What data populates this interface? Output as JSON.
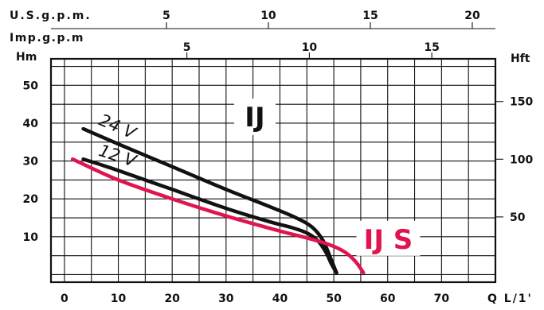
{
  "chart_data": {
    "type": "line",
    "x_axis": {
      "label": "Q L/1'",
      "ticks": [
        0,
        10,
        20,
        30,
        40,
        50,
        60,
        70
      ],
      "range": [
        -2.5,
        80
      ]
    },
    "y_axis": {
      "label": "Hm",
      "ticks": [
        10,
        20,
        30,
        40,
        50
      ],
      "range": [
        -2,
        57
      ]
    },
    "y2_axis": {
      "label": "Hft",
      "ticks": [
        50,
        100,
        150
      ]
    },
    "top_axis_usgpm": {
      "label": "U.S.g.p.m.",
      "ticks": [
        5,
        10,
        15,
        20
      ]
    },
    "top_axis_impgpm": {
      "label": "Imp.g.p.m",
      "ticks": [
        5,
        10,
        15
      ]
    },
    "grid": true,
    "series": [
      {
        "name": "24 V",
        "color": "#111111",
        "x": [
          3.5,
          10,
          20,
          30,
          38,
          43,
          46,
          48,
          49.5,
          50.5
        ],
        "y": [
          38.5,
          34.5,
          28.5,
          22.5,
          18,
          15,
          12.5,
          9,
          4,
          0.5
        ]
      },
      {
        "name": "12 V",
        "color": "#111111",
        "x": [
          3.5,
          10,
          20,
          30,
          38,
          42,
          45,
          47,
          48.5,
          49.5,
          50.5
        ],
        "y": [
          30.5,
          27.5,
          22.5,
          17.5,
          14,
          12.5,
          11,
          9,
          6,
          3,
          0.5
        ]
      },
      {
        "name": "IJ S",
        "color": "#e0154f",
        "x": [
          1.5,
          10,
          20,
          30,
          40,
          45,
          49,
          52,
          54,
          55.5
        ],
        "y": [
          30.5,
          25,
          20,
          15.5,
          11.5,
          9.7,
          8,
          6,
          3.5,
          0.5
        ]
      }
    ],
    "annotations": [
      {
        "text": "IJ",
        "color": "#111111"
      },
      {
        "text": "IJ S",
        "color": "#e0154f"
      }
    ]
  }
}
